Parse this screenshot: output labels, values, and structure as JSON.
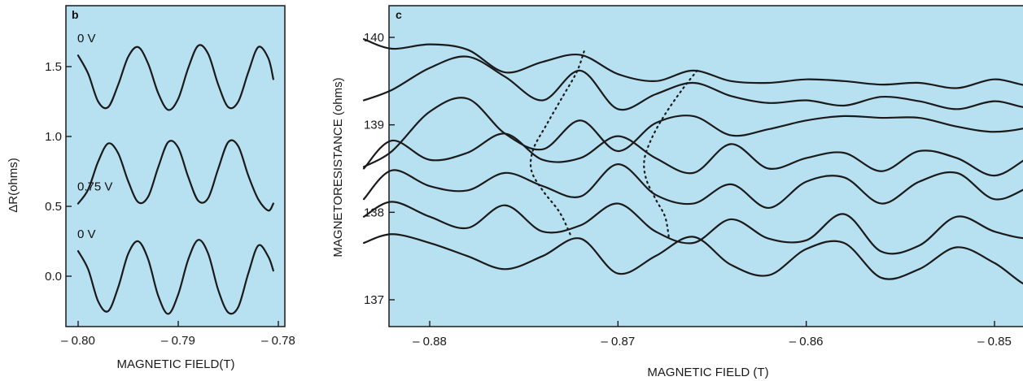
{
  "chart_data": [
    {
      "panel": "b",
      "type": "line",
      "xlabel": "MAGNETIC FIELD(T)",
      "ylabel": "ΔR(ohms)",
      "xlim": [
        -0.8,
        -0.78
      ],
      "ylim": [
        -0.38,
        1.95
      ],
      "xticks": [
        -0.8,
        -0.79,
        -0.78
      ],
      "xtick_labels": [
        "– 0.80",
        "– 0.79",
        "– 0.78"
      ],
      "yticks": [
        0.0,
        0.5,
        1.0,
        1.5
      ],
      "ytick_labels": [
        "0.0",
        "0.5",
        "1.0",
        "1.5"
      ],
      "background": "#b7e0f1",
      "series": [
        {
          "name": "0 V",
          "x": [
            -0.8,
            -0.799,
            -0.798,
            -0.797,
            -0.796,
            -0.795,
            -0.794,
            -0.793,
            -0.792,
            -0.791,
            -0.79,
            -0.789,
            -0.788,
            -0.787,
            -0.786,
            -0.785,
            -0.784,
            -0.783,
            -0.782,
            -0.781,
            -0.7805
          ],
          "y": [
            1.58,
            1.45,
            1.25,
            1.21,
            1.37,
            1.57,
            1.64,
            1.52,
            1.31,
            1.19,
            1.27,
            1.49,
            1.65,
            1.59,
            1.37,
            1.21,
            1.25,
            1.46,
            1.64,
            1.56,
            1.41
          ]
        },
        {
          "name": "0.75 V",
          "x": [
            -0.8,
            -0.799,
            -0.798,
            -0.797,
            -0.796,
            -0.795,
            -0.794,
            -0.793,
            -0.792,
            -0.791,
            -0.79,
            -0.789,
            -0.788,
            -0.787,
            -0.786,
            -0.785,
            -0.784,
            -0.783,
            -0.782,
            -0.781,
            -0.7805
          ],
          "y": [
            0.52,
            0.62,
            0.82,
            0.95,
            0.88,
            0.68,
            0.53,
            0.57,
            0.78,
            0.96,
            0.92,
            0.71,
            0.54,
            0.56,
            0.77,
            0.96,
            0.93,
            0.72,
            0.55,
            0.47,
            0.52
          ]
        },
        {
          "name": "0 V",
          "x": [
            -0.8,
            -0.799,
            -0.798,
            -0.797,
            -0.796,
            -0.795,
            -0.794,
            -0.793,
            -0.792,
            -0.791,
            -0.79,
            -0.789,
            -0.788,
            -0.787,
            -0.786,
            -0.785,
            -0.784,
            -0.783,
            -0.782,
            -0.781,
            -0.7805
          ],
          "y": [
            0.18,
            0.05,
            -0.18,
            -0.25,
            -0.08,
            0.16,
            0.25,
            0.12,
            -0.14,
            -0.27,
            -0.13,
            0.12,
            0.26,
            0.16,
            -0.1,
            -0.26,
            -0.22,
            0.02,
            0.22,
            0.14,
            0.04
          ]
        }
      ]
    },
    {
      "panel": "c",
      "type": "line",
      "xlabel": "MAGNETIC FIELD (T)",
      "ylabel": "MAGNETORESISTANCE (ohms)",
      "xlim": [
        -0.8835,
        -0.8465
      ],
      "ylim": [
        136.7,
        140.35
      ],
      "xticks": [
        -0.88,
        -0.87,
        -0.86,
        -0.85
      ],
      "xtick_labels": [
        "– 0.88",
        "– 0.87",
        "– 0.86",
        "– 0.85"
      ],
      "yticks": [
        137,
        138,
        139,
        140
      ],
      "ytick_labels": [
        "137",
        "138",
        "139",
        "140"
      ],
      "background": "#b7e0f1",
      "series": [
        {
          "x": [
            -0.8835,
            -0.882,
            -0.88,
            -0.878,
            -0.876,
            -0.874,
            -0.872,
            -0.87,
            -0.868,
            -0.866,
            -0.864,
            -0.862,
            -0.86,
            -0.858,
            -0.856,
            -0.854,
            -0.852,
            -0.85,
            -0.848,
            -0.8465
          ],
          "y": [
            139.98,
            139.87,
            139.92,
            139.86,
            139.6,
            139.72,
            139.8,
            139.58,
            139.5,
            139.62,
            139.5,
            139.48,
            139.52,
            139.5,
            139.46,
            139.48,
            139.42,
            139.52,
            139.45,
            139.6
          ]
        },
        {
          "x": [
            -0.8835,
            -0.882,
            -0.88,
            -0.878,
            -0.876,
            -0.874,
            -0.872,
            -0.87,
            -0.868,
            -0.866,
            -0.864,
            -0.862,
            -0.86,
            -0.858,
            -0.856,
            -0.854,
            -0.852,
            -0.85,
            -0.848,
            -0.8465
          ],
          "y": [
            139.28,
            139.4,
            139.65,
            139.78,
            139.55,
            139.28,
            139.62,
            139.18,
            139.35,
            139.48,
            139.33,
            139.25,
            139.28,
            139.22,
            139.32,
            139.27,
            139.18,
            139.27,
            139.2,
            139.4
          ]
        },
        {
          "x": [
            -0.8835,
            -0.882,
            -0.88,
            -0.878,
            -0.876,
            -0.874,
            -0.872,
            -0.87,
            -0.868,
            -0.866,
            -0.864,
            -0.862,
            -0.86,
            -0.858,
            -0.856,
            -0.854,
            -0.852,
            -0.85,
            -0.848,
            -0.8465
          ],
          "y": [
            138.52,
            138.7,
            139.15,
            139.3,
            138.9,
            138.72,
            139.05,
            138.7,
            139.02,
            139.1,
            138.88,
            138.95,
            139.05,
            139.1,
            139.08,
            139.08,
            138.98,
            138.92,
            138.98,
            139.1
          ]
        },
        {
          "x": [
            -0.8835,
            -0.882,
            -0.88,
            -0.878,
            -0.876,
            -0.874,
            -0.872,
            -0.87,
            -0.868,
            -0.866,
            -0.864,
            -0.862,
            -0.86,
            -0.858,
            -0.856,
            -0.854,
            -0.852,
            -0.85,
            -0.848,
            -0.8465
          ],
          "y": [
            138.5,
            138.82,
            138.6,
            138.68,
            138.9,
            138.6,
            138.62,
            138.87,
            138.62,
            138.45,
            138.78,
            138.5,
            138.62,
            138.68,
            138.47,
            138.7,
            138.62,
            138.42,
            138.65,
            138.73
          ]
        },
        {
          "x": [
            -0.8835,
            -0.882,
            -0.88,
            -0.878,
            -0.876,
            -0.874,
            -0.872,
            -0.87,
            -0.868,
            -0.866,
            -0.864,
            -0.862,
            -0.86,
            -0.858,
            -0.856,
            -0.854,
            -0.852,
            -0.85,
            -0.848,
            -0.8465
          ],
          "y": [
            138.15,
            138.48,
            138.3,
            138.25,
            138.45,
            138.3,
            138.18,
            138.55,
            138.2,
            138.1,
            138.32,
            138.05,
            138.35,
            138.4,
            138.1,
            138.35,
            138.45,
            138.15,
            138.3,
            138.35
          ]
        },
        {
          "x": [
            -0.8835,
            -0.882,
            -0.88,
            -0.878,
            -0.876,
            -0.874,
            -0.872,
            -0.87,
            -0.868,
            -0.866,
            -0.864,
            -0.862,
            -0.86,
            -0.858,
            -0.856,
            -0.854,
            -0.852,
            -0.85,
            -0.848,
            -0.8465
          ],
          "y": [
            137.95,
            138.12,
            137.95,
            137.82,
            138.08,
            137.78,
            137.85,
            138.1,
            137.78,
            137.65,
            137.92,
            137.7,
            137.68,
            137.98,
            137.55,
            137.62,
            137.95,
            137.78,
            137.7,
            137.82
          ]
        },
        {
          "x": [
            -0.8835,
            -0.882,
            -0.88,
            -0.878,
            -0.876,
            -0.874,
            -0.872,
            -0.87,
            -0.868,
            -0.866,
            -0.864,
            -0.862,
            -0.86,
            -0.858,
            -0.856,
            -0.854,
            -0.852,
            -0.85,
            -0.848,
            -0.8465
          ],
          "y": [
            137.65,
            137.75,
            137.65,
            137.5,
            137.35,
            137.5,
            137.7,
            137.3,
            137.5,
            137.72,
            137.4,
            137.28,
            137.58,
            137.65,
            137.25,
            137.35,
            137.6,
            137.42,
            137.15,
            137.4
          ]
        }
      ],
      "annotations": [
        {
          "kind": "dotted-line",
          "x": [
            -0.8718,
            -0.8722,
            -0.873,
            -0.8738,
            -0.8745,
            -0.8746,
            -0.874,
            -0.8731,
            -0.8725
          ],
          "y": [
            139.84,
            139.6,
            139.3,
            139.0,
            138.72,
            138.48,
            138.25,
            138.0,
            137.73
          ]
        },
        {
          "kind": "dotted-line",
          "x": [
            -0.8658,
            -0.8666,
            -0.8675,
            -0.8682,
            -0.8686,
            -0.8685,
            -0.868,
            -0.8675,
            -0.8673
          ],
          "y": [
            139.62,
            139.4,
            139.12,
            138.85,
            138.6,
            138.38,
            138.15,
            137.95,
            137.72
          ]
        }
      ]
    }
  ]
}
